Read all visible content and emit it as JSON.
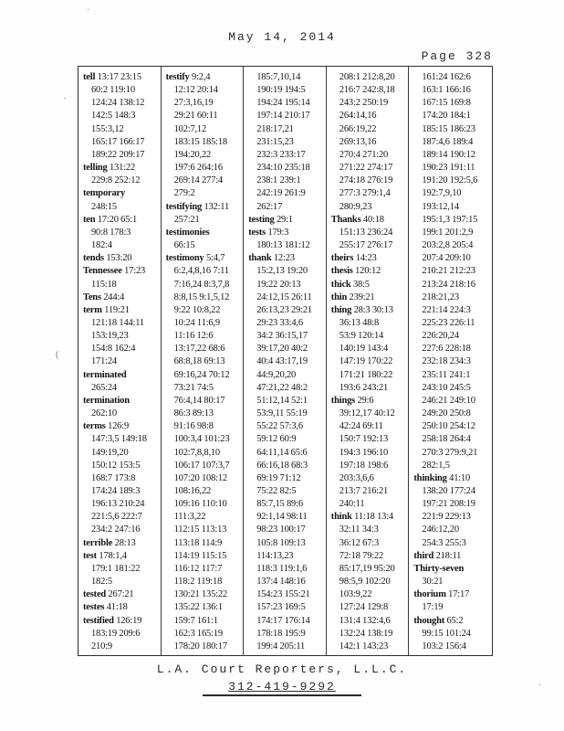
{
  "header": {
    "date": "May 14, 2014",
    "page_label": "Page 328"
  },
  "footer": {
    "company": "L.A. Court Reporters, L.L.C.",
    "phone": "312-419-9292"
  },
  "artifacts": {
    "a1": "(",
    "a2": ".",
    "a3": "·",
    "a4": "."
  },
  "index": {
    "columns": [
      {
        "lines": [
          {
            "word": "tell",
            "refs": "13:17 23:15"
          },
          {
            "refs": "60:2 119:10"
          },
          {
            "refs": "124:24 138:12"
          },
          {
            "refs": "142:5 148:3"
          },
          {
            "refs": "155:3,12"
          },
          {
            "refs": "165:17 166:17"
          },
          {
            "refs": "189:22 209:17"
          },
          {
            "word": "telling",
            "refs": "131:22"
          },
          {
            "refs": "229:8 252:12"
          },
          {
            "word": "temporary",
            "refs": ""
          },
          {
            "refs": "248:15"
          },
          {
            "word": "ten",
            "refs": "17:20 65:1"
          },
          {
            "refs": "90:8 178:3"
          },
          {
            "refs": "182:4"
          },
          {
            "word": "tends",
            "refs": "153:20"
          },
          {
            "word": "Tennessee",
            "refs": "17:23"
          },
          {
            "refs": "115:18"
          },
          {
            "word": "Tens",
            "refs": "244:4"
          },
          {
            "word": "term",
            "refs": "119:21"
          },
          {
            "refs": "121:18 144:11"
          },
          {
            "refs": "153:19,23"
          },
          {
            "refs": "154:8 162:4"
          },
          {
            "refs": "171:24"
          },
          {
            "word": "terminated",
            "refs": ""
          },
          {
            "refs": "265:24"
          },
          {
            "word": "termination",
            "refs": ""
          },
          {
            "refs": "262:10"
          },
          {
            "word": "terms",
            "refs": "126:9"
          },
          {
            "refs": "147:3,5 149:18"
          },
          {
            "refs": "149:19,20"
          },
          {
            "refs": "150:12 153:5"
          },
          {
            "refs": "168:7 173:8"
          },
          {
            "refs": "174:24 189:3"
          },
          {
            "refs": "196:13 210:24"
          },
          {
            "refs": "221:5,6 222:7"
          },
          {
            "refs": "234:2 247:16"
          },
          {
            "word": "terrible",
            "refs": "28:13"
          },
          {
            "word": "test",
            "refs": "178:1,4"
          },
          {
            "refs": "179:1 181:22"
          },
          {
            "refs": "182:5"
          },
          {
            "word": "tested",
            "refs": "267:21"
          },
          {
            "word": "testes",
            "refs": "41:18"
          },
          {
            "word": "testified",
            "refs": "126:19"
          },
          {
            "refs": "183:19 209:6"
          },
          {
            "refs": "210:9"
          }
        ]
      },
      {
        "lines": [
          {
            "word": "testify",
            "refs": "9:2,4"
          },
          {
            "refs": "12:12 20:14"
          },
          {
            "refs": "27:3,16,19"
          },
          {
            "refs": "29:21 60:11"
          },
          {
            "refs": "102:7,12"
          },
          {
            "refs": "183:15 185:18"
          },
          {
            "refs": "194:20,22"
          },
          {
            "refs": "197:6 264:16"
          },
          {
            "refs": "269:14 277:4"
          },
          {
            "refs": "279:2"
          },
          {
            "word": "testifying",
            "refs": "132:11"
          },
          {
            "refs": "257:21"
          },
          {
            "word": "testimonies",
            "refs": ""
          },
          {
            "refs": "66:15"
          },
          {
            "word": "testimony",
            "refs": "5:4,7"
          },
          {
            "refs": "6:2,4,8,16 7:11"
          },
          {
            "refs": "7:16,24 8:3,7,8"
          },
          {
            "refs": "8:8,15 9:1,5,12"
          },
          {
            "refs": "9:22 10:8,22"
          },
          {
            "refs": "10:24 11:6,9"
          },
          {
            "refs": "11:16 12:6"
          },
          {
            "refs": "13:17,22 68:6"
          },
          {
            "refs": "68:8,18 69:13"
          },
          {
            "refs": "69:16,24 70:12"
          },
          {
            "refs": "73:21 74:5"
          },
          {
            "refs": "76:4,14 80:17"
          },
          {
            "refs": "86:3 89:13"
          },
          {
            "refs": "91:16 98:8"
          },
          {
            "refs": "100:3,4 101:23"
          },
          {
            "refs": "102:7,8,8,10"
          },
          {
            "refs": "106:17 107:3,7"
          },
          {
            "refs": "107:20 108:12"
          },
          {
            "refs": "108:16,22"
          },
          {
            "refs": "109:16 110:10"
          },
          {
            "refs": "111:3,22"
          },
          {
            "refs": "112:15 113:13"
          },
          {
            "refs": "113:18 114:9"
          },
          {
            "refs": "114:19 115:15"
          },
          {
            "refs": "116:12 117:7"
          },
          {
            "refs": "118:2 119:18"
          },
          {
            "refs": "130:21 135:22"
          },
          {
            "refs": "135:22 136:1"
          },
          {
            "refs": "159:7 161:1"
          },
          {
            "refs": "162:3 165:19"
          },
          {
            "refs": "178:20 180:17"
          }
        ]
      },
      {
        "lines": [
          {
            "refs": "185:7,10,14"
          },
          {
            "refs": "190:19 194:5"
          },
          {
            "refs": "194:24 195:14"
          },
          {
            "refs": "197:14 210:17"
          },
          {
            "refs": "218:17,21"
          },
          {
            "refs": "231:15,23"
          },
          {
            "refs": "232:3 233:17"
          },
          {
            "refs": "234:10 235:18"
          },
          {
            "refs": "238:1 239:1"
          },
          {
            "refs": "242:19 261:9"
          },
          {
            "refs": "262:17"
          },
          {
            "word": "testing",
            "refs": "29:1"
          },
          {
            "word": "tests",
            "refs": "179:3"
          },
          {
            "refs": "180:13 181:12"
          },
          {
            "word": "thank",
            "refs": "12:23"
          },
          {
            "refs": "15:2,13 19:20"
          },
          {
            "refs": "19:22 20:13"
          },
          {
            "refs": "24:12,15 26:11"
          },
          {
            "refs": "26:13,23 29:21"
          },
          {
            "refs": "29:23 33:4,6"
          },
          {
            "refs": "34:2 36:15,17"
          },
          {
            "refs": "39:17,20 40:2"
          },
          {
            "refs": "40:4 43:17,19"
          },
          {
            "refs": "44:9,20,20"
          },
          {
            "refs": "47:21,22 48:2"
          },
          {
            "refs": "51:12,14 52:1"
          },
          {
            "refs": "53:9,11 55:19"
          },
          {
            "refs": "55:22 57:3,6"
          },
          {
            "refs": "59:12 60:9"
          },
          {
            "refs": "64:11,14 65:6"
          },
          {
            "refs": "66:16,18 68:3"
          },
          {
            "refs": "69:19 71:12"
          },
          {
            "refs": "75:22 82:5"
          },
          {
            "refs": "85:7,15 89:6"
          },
          {
            "refs": "92:1,14 98:11"
          },
          {
            "refs": "98:23 100:17"
          },
          {
            "refs": "105:8 109:13"
          },
          {
            "refs": "114:13,23"
          },
          {
            "refs": "118:3 119:1,6"
          },
          {
            "refs": "137:4 148:16"
          },
          {
            "refs": "154:23 155:21"
          },
          {
            "refs": "157:23 169:5"
          },
          {
            "refs": "174:17 176:14"
          },
          {
            "refs": "178:18 195:9"
          },
          {
            "refs": "199:4 205:11"
          }
        ]
      },
      {
        "lines": [
          {
            "refs": "208:1 212:8,20"
          },
          {
            "refs": "216:7 242:8,18"
          },
          {
            "refs": "243:2 250:19"
          },
          {
            "refs": "264:14,16"
          },
          {
            "refs": "266:19,22"
          },
          {
            "refs": "269:13,16"
          },
          {
            "refs": "270:4 271:20"
          },
          {
            "refs": "271:22 274:17"
          },
          {
            "refs": "274:18 276:19"
          },
          {
            "refs": "277:3 279:1,4"
          },
          {
            "refs": "280:9,23"
          },
          {
            "word": "Thanks",
            "refs": "40:18"
          },
          {
            "refs": "151:13 236:24"
          },
          {
            "refs": "255:17 276:17"
          },
          {
            "word": "theirs",
            "refs": "14:23"
          },
          {
            "word": "thesis",
            "refs": "120:12"
          },
          {
            "word": "thick",
            "refs": "38:5"
          },
          {
            "word": "thin",
            "refs": "239:21"
          },
          {
            "word": "thing",
            "refs": "28:3 30:13"
          },
          {
            "refs": "36:13 48:8"
          },
          {
            "refs": "53:9 120:14"
          },
          {
            "refs": "140:19 143:4"
          },
          {
            "refs": "147:19 170:22"
          },
          {
            "refs": "171:21 180:22"
          },
          {
            "refs": "193:6 243:21"
          },
          {
            "word": "things",
            "refs": "29:6"
          },
          {
            "refs": "39:12,17 40:12"
          },
          {
            "refs": "42:24 69:11"
          },
          {
            "refs": "150:7 192:13"
          },
          {
            "refs": "194:3 196:10"
          },
          {
            "refs": "197:18 198:6"
          },
          {
            "refs": "203:3,6,6"
          },
          {
            "refs": "213:7 216:21"
          },
          {
            "refs": "240:11"
          },
          {
            "word": "think",
            "refs": "11:18 13:4"
          },
          {
            "refs": "32:11 34:3"
          },
          {
            "refs": "36:12 67:3"
          },
          {
            "refs": "72:18 79:22"
          },
          {
            "refs": "85:17,19 95:20"
          },
          {
            "refs": "98:5,9 102:20"
          },
          {
            "refs": "103:9,22"
          },
          {
            "refs": "127:24 129:8"
          },
          {
            "refs": "131:4 132:4,6"
          },
          {
            "refs": "132:24 138:19"
          },
          {
            "refs": "142:1 143:23"
          }
        ]
      },
      {
        "lines": [
          {
            "refs": "161:24 162:6"
          },
          {
            "refs": "163:1 166:16"
          },
          {
            "refs": "167:15 169:8"
          },
          {
            "refs": "174:20 184:1"
          },
          {
            "refs": "185:15 186:23"
          },
          {
            "refs": "187:4,6 189:4"
          },
          {
            "refs": "189:14 190:12"
          },
          {
            "refs": "190:23 191:11"
          },
          {
            "refs": "191:20 192:5,6"
          },
          {
            "refs": "192:7,9,10"
          },
          {
            "refs": "193:12,14"
          },
          {
            "refs": "195:1,3 197:15"
          },
          {
            "refs": "199:1 201:2,9"
          },
          {
            "refs": "203:2,8 205:4"
          },
          {
            "refs": "207:4 209:10"
          },
          {
            "refs": "210:21 212:23"
          },
          {
            "refs": "213:24 218:16"
          },
          {
            "refs": "218:21,23"
          },
          {
            "refs": "221:14 224:3"
          },
          {
            "refs": "225:23 226:11"
          },
          {
            "refs": "226:20,24"
          },
          {
            "refs": "227:6 228:18"
          },
          {
            "refs": "232:18 234:3"
          },
          {
            "refs": "235:11 241:1"
          },
          {
            "refs": "243:10 245:5"
          },
          {
            "refs": "246:21 249:10"
          },
          {
            "refs": "249:20 250:8"
          },
          {
            "refs": "250:10 254:12"
          },
          {
            "refs": "258:18 264:4"
          },
          {
            "refs": "270:3 279:9,21"
          },
          {
            "refs": "282:1,5"
          },
          {
            "word": "thinking",
            "refs": "41:10"
          },
          {
            "refs": "138:20 177:24"
          },
          {
            "refs": "197:21 208:19"
          },
          {
            "refs": "221:9 229:13"
          },
          {
            "refs": "246:12,20"
          },
          {
            "refs": "254:3 255:3"
          },
          {
            "word": "third",
            "refs": "218:11"
          },
          {
            "word": "Thirty-seven",
            "refs": ""
          },
          {
            "refs": "30:21"
          },
          {
            "word": "thorium",
            "refs": "17:17"
          },
          {
            "refs": "17:19"
          },
          {
            "word": "thought",
            "refs": "65:2"
          },
          {
            "refs": "99:15 101:24"
          },
          {
            "refs": "103:2 156:4"
          }
        ]
      }
    ]
  }
}
